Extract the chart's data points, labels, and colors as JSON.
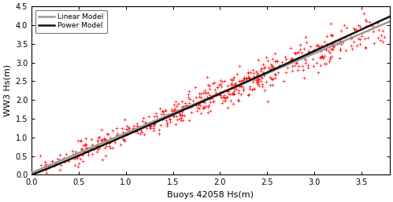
{
  "xlabel": "Buoys 42058 Hs(m)",
  "ylabel": "WW3 Hs(m)",
  "xlim": [
    0,
    3.8
  ],
  "ylim": [
    0,
    4.5
  ],
  "xticks": [
    0,
    0.5,
    1.0,
    1.5,
    2.0,
    2.5,
    3.0,
    3.5
  ],
  "yticks": [
    0,
    0.5,
    1.0,
    1.5,
    2.0,
    2.5,
    3.0,
    3.5,
    4.0,
    4.5
  ],
  "scatter_color": "#ff0000",
  "scatter_marker": "+",
  "scatter_size": 6,
  "scatter_lw": 0.5,
  "linear_color": "#999999",
  "power_color": "#111111",
  "linear_label": "Linear Model",
  "power_label": "Power Model",
  "linear_lw": 1.8,
  "power_lw": 1.8,
  "legend_loc": "upper left",
  "n_points": 594,
  "seed": 42,
  "linear_slope": 1.065,
  "linear_intercept": 0.05,
  "power_a": 1.055,
  "power_b": 1.04,
  "scatter_noise_std": 0.2,
  "background_color": "#ffffff",
  "tick_fontsize": 7,
  "label_fontsize": 8
}
